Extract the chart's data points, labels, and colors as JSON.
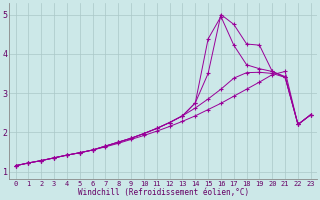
{
  "xlabel": "Windchill (Refroidissement éolien,°C)",
  "bg_color": "#cce8e8",
  "grid_color": "#aac8c8",
  "line_color": "#990099",
  "xlim": [
    -0.5,
    23.5
  ],
  "ylim": [
    0.8,
    5.3
  ],
  "xticks": [
    0,
    1,
    2,
    3,
    4,
    5,
    6,
    7,
    8,
    9,
    10,
    11,
    12,
    13,
    14,
    15,
    16,
    17,
    18,
    19,
    20,
    21,
    22,
    23
  ],
  "yticks": [
    1,
    2,
    3,
    4,
    5
  ],
  "line1_x": [
    0,
    1,
    2,
    3,
    4,
    5,
    6,
    7,
    8,
    9,
    10,
    11,
    12,
    13,
    14,
    15,
    16,
    17,
    18,
    19,
    20,
    21,
    22,
    23
  ],
  "line1_y": [
    1.15,
    1.22,
    1.28,
    1.35,
    1.42,
    1.48,
    1.55,
    1.63,
    1.72,
    1.82,
    1.92,
    2.03,
    2.15,
    2.28,
    2.42,
    2.58,
    2.74,
    2.92,
    3.1,
    3.28,
    3.47,
    3.55,
    2.2,
    2.45
  ],
  "line2_x": [
    0,
    1,
    2,
    3,
    4,
    5,
    6,
    7,
    8,
    9,
    10,
    11,
    12,
    13,
    14,
    15,
    16,
    17,
    18,
    19,
    20,
    21,
    22,
    23
  ],
  "line2_y": [
    1.15,
    1.22,
    1.28,
    1.35,
    1.42,
    1.48,
    1.55,
    1.65,
    1.75,
    1.85,
    1.97,
    2.1,
    2.25,
    2.42,
    2.62,
    2.85,
    3.1,
    3.38,
    3.52,
    3.53,
    3.5,
    3.4,
    2.2,
    2.45
  ],
  "line3_x": [
    0,
    1,
    2,
    3,
    4,
    5,
    6,
    7,
    8,
    9,
    10,
    11,
    12,
    13,
    14,
    15,
    16,
    17,
    18,
    19,
    20,
    21,
    22,
    23
  ],
  "line3_y": [
    1.15,
    1.22,
    1.28,
    1.35,
    1.42,
    1.48,
    1.55,
    1.65,
    1.75,
    1.85,
    1.97,
    2.1,
    2.25,
    2.42,
    2.75,
    4.38,
    4.95,
    4.22,
    3.72,
    3.62,
    3.55,
    3.4,
    2.2,
    2.45
  ],
  "line4_x": [
    0,
    1,
    2,
    3,
    4,
    5,
    6,
    7,
    8,
    9,
    10,
    11,
    12,
    13,
    14,
    15,
    16,
    17,
    18,
    19,
    20,
    21,
    22,
    23
  ],
  "line4_y": [
    1.15,
    1.22,
    1.28,
    1.35,
    1.42,
    1.48,
    1.55,
    1.65,
    1.75,
    1.85,
    1.97,
    2.1,
    2.25,
    2.42,
    2.75,
    3.5,
    5.0,
    4.75,
    4.25,
    4.22,
    3.55,
    3.42,
    2.2,
    2.45
  ]
}
